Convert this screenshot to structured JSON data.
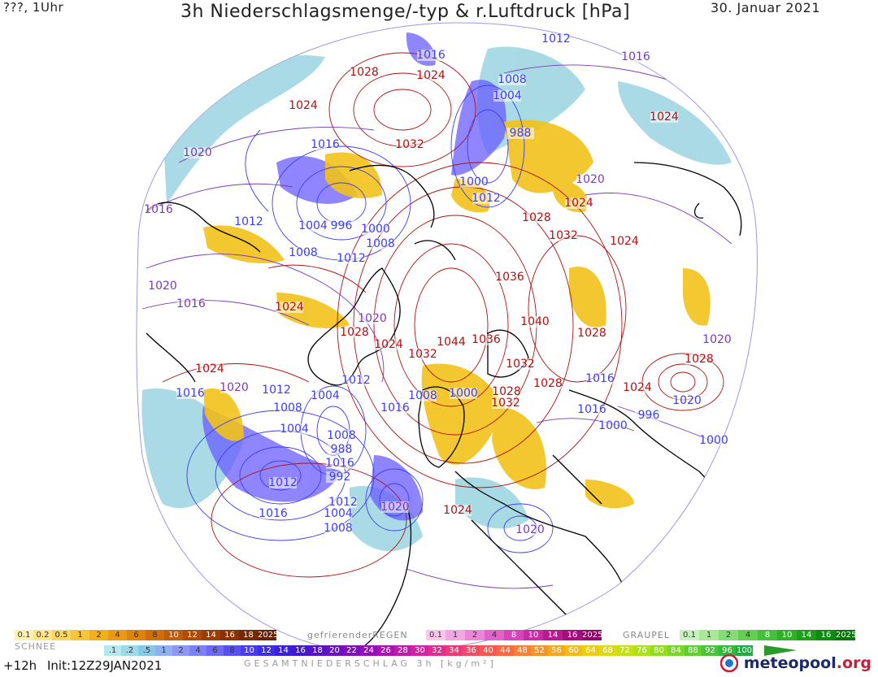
{
  "header": {
    "left": "???, 1Uhr",
    "title": "3h Niederschlagsmenge/-typ & r.Luftdruck [hPa]",
    "date": "30. Januar 2021"
  },
  "colors": {
    "high_isobar": "#b01010",
    "low_isobar": "#3d3df0",
    "mid_isobar": "#7a3ab8",
    "coast": "#000000",
    "snow": "#f2c21a",
    "rain_light": "#9ad4e0",
    "rain_heavy": "#6a5cff"
  },
  "pressure_labels": [
    {
      "t": "1012",
      "c": "low"
    },
    {
      "t": "1016",
      "c": "low"
    },
    {
      "t": "1008",
      "c": "low"
    },
    {
      "t": "1004",
      "c": "low"
    },
    {
      "t": "1016",
      "c": "mid"
    },
    {
      "t": "1028",
      "c": "high"
    },
    {
      "t": "1024",
      "c": "high"
    },
    {
      "t": "1024",
      "c": "high"
    },
    {
      "t": "988",
      "c": "low"
    },
    {
      "t": "1024",
      "c": "high"
    },
    {
      "t": "1020",
      "c": "mid"
    },
    {
      "t": "1016",
      "c": "low"
    },
    {
      "t": "1032",
      "c": "high"
    },
    {
      "t": "1000",
      "c": "low"
    },
    {
      "t": "1012",
      "c": "low"
    },
    {
      "t": "1020",
      "c": "mid"
    },
    {
      "t": "1016",
      "c": "mid"
    },
    {
      "t": "1012",
      "c": "low"
    },
    {
      "t": "1004",
      "c": "low"
    },
    {
      "t": "996",
      "c": "low"
    },
    {
      "t": "1000",
      "c": "low"
    },
    {
      "t": "1008",
      "c": "low"
    },
    {
      "t": "1028",
      "c": "high"
    },
    {
      "t": "1024",
      "c": "high"
    },
    {
      "t": "1032",
      "c": "high"
    },
    {
      "t": "1024",
      "c": "high"
    },
    {
      "t": "1008",
      "c": "low"
    },
    {
      "t": "1012",
      "c": "low"
    },
    {
      "t": "1036",
      "c": "high"
    },
    {
      "t": "1020",
      "c": "mid"
    },
    {
      "t": "1016",
      "c": "mid"
    },
    {
      "t": "1024",
      "c": "high"
    },
    {
      "t": "1020",
      "c": "mid"
    },
    {
      "t": "1040",
      "c": "high"
    },
    {
      "t": "1028",
      "c": "high"
    },
    {
      "t": "1028",
      "c": "high"
    },
    {
      "t": "1024",
      "c": "high"
    },
    {
      "t": "1032",
      "c": "high"
    },
    {
      "t": "1044",
      "c": "high"
    },
    {
      "t": "1036",
      "c": "high"
    },
    {
      "t": "1020",
      "c": "mid"
    },
    {
      "t": "1028",
      "c": "high"
    },
    {
      "t": "1032",
      "c": "high"
    },
    {
      "t": "1012",
      "c": "low"
    },
    {
      "t": "1028",
      "c": "high"
    },
    {
      "t": "1024",
      "c": "high"
    },
    {
      "t": "1020",
      "c": "mid"
    },
    {
      "t": "1016",
      "c": "low"
    },
    {
      "t": "1004",
      "c": "low"
    },
    {
      "t": "1008",
      "c": "low"
    },
    {
      "t": "1000",
      "c": "low"
    },
    {
      "t": "1028",
      "c": "high"
    },
    {
      "t": "1032",
      "c": "high"
    },
    {
      "t": "1024",
      "c": "high"
    },
    {
      "t": "1016",
      "c": "low"
    },
    {
      "t": "1020",
      "c": "low"
    },
    {
      "t": "1012",
      "c": "low"
    },
    {
      "t": "1016",
      "c": "low"
    },
    {
      "t": "1016",
      "c": "low"
    },
    {
      "t": "1008",
      "c": "low"
    },
    {
      "t": "1000",
      "c": "low"
    },
    {
      "t": "996",
      "c": "low"
    },
    {
      "t": "1000",
      "c": "low"
    },
    {
      "t": "1004",
      "c": "low"
    },
    {
      "t": "1008",
      "c": "low"
    },
    {
      "t": "988",
      "c": "low"
    },
    {
      "t": "1016",
      "c": "low"
    },
    {
      "t": "992",
      "c": "low"
    },
    {
      "t": "1012",
      "c": "low"
    },
    {
      "t": "1012",
      "c": "low"
    },
    {
      "t": "1020",
      "c": "mid"
    },
    {
      "t": "1024",
      "c": "high"
    },
    {
      "t": "1016",
      "c": "low"
    },
    {
      "t": "1004",
      "c": "low"
    },
    {
      "t": "1008",
      "c": "low"
    },
    {
      "t": "1020",
      "c": "mid"
    }
  ],
  "legend": {
    "snow_title": "SCHNEE",
    "snow": [
      {
        "l": "0.1",
        "c": "#fdf0b0"
      },
      {
        "l": "0.2",
        "c": "#fbe48a"
      },
      {
        "l": "0.5",
        "c": "#f8d565"
      },
      {
        "l": "1",
        "c": "#f5c53a"
      },
      {
        "l": "2",
        "c": "#f0b020"
      },
      {
        "l": "4",
        "c": "#e89a15"
      },
      {
        "l": "6",
        "c": "#dd8410"
      },
      {
        "l": "8",
        "c": "#cf6f0c"
      },
      {
        "l": "10",
        "c": "#bf5c0a"
      },
      {
        "l": "12",
        "c": "#ad4c08"
      },
      {
        "l": "14",
        "c": "#9a3e07"
      },
      {
        "l": "16",
        "c": "#883306"
      },
      {
        "l": "18",
        "c": "#762905"
      },
      {
        "l": "2025+",
        "c": "#642004"
      }
    ],
    "freezing_title": "gefrierender",
    "freezing_suffix": "REGEN",
    "freezing": [
      {
        "l": "0.1",
        "c": "#f6c8ec"
      },
      {
        "l": "1",
        "c": "#f0a8e2"
      },
      {
        "l": "2",
        "c": "#ea86d6"
      },
      {
        "l": "4",
        "c": "#e064c8"
      },
      {
        "l": "8",
        "c": "#d646b8"
      },
      {
        "l": "10",
        "c": "#c82ea4"
      },
      {
        "l": "14",
        "c": "#b81a90"
      },
      {
        "l": "16",
        "c": "#a40e7a"
      },
      {
        "l": "2025+",
        "c": "#8c0664"
      }
    ],
    "graupel_title": "GRAUPEL",
    "graupel": [
      {
        "l": "0.1",
        "c": "#c8f0c0"
      },
      {
        "l": "1",
        "c": "#a8e898"
      },
      {
        "l": "2",
        "c": "#86dc74"
      },
      {
        "l": "4",
        "c": "#64ce54"
      },
      {
        "l": "8",
        "c": "#46c03a"
      },
      {
        "l": "10",
        "c": "#30b028"
      },
      {
        "l": "14",
        "c": "#1e9e1c"
      },
      {
        "l": "16",
        "c": "#128a12"
      },
      {
        "l": "2025+",
        "c": "#0a740a"
      }
    ],
    "total_title": "GESAMTNIEDERSCHLAG 3h [kg/m²]",
    "total": [
      {
        "l": ".1",
        "c": "#b6e6ee"
      },
      {
        "l": ".2",
        "c": "#9adbe6"
      },
      {
        "l": ".5",
        "c": "#86c8e6"
      },
      {
        "l": "1",
        "c": "#8eb0f0"
      },
      {
        "l": "2",
        "c": "#8c98f4"
      },
      {
        "l": "4",
        "c": "#7f7ff6"
      },
      {
        "l": "6",
        "c": "#6e68f4"
      },
      {
        "l": "8",
        "c": "#5a50f0"
      },
      {
        "l": "10",
        "c": "#4a3cea"
      },
      {
        "l": "12",
        "c": "#3e2ee2"
      },
      {
        "l": "14",
        "c": "#3a20d6"
      },
      {
        "l": "16",
        "c": "#4418cc"
      },
      {
        "l": "18",
        "c": "#5614c4"
      },
      {
        "l": "20",
        "c": "#6a12be"
      },
      {
        "l": "22",
        "c": "#7e10b8"
      },
      {
        "l": "24",
        "c": "#9410b4"
      },
      {
        "l": "26",
        "c": "#aa14b0"
      },
      {
        "l": "28",
        "c": "#bf1caa"
      },
      {
        "l": "30",
        "c": "#d224a0"
      },
      {
        "l": "32",
        "c": "#e02e90"
      },
      {
        "l": "34",
        "c": "#ea3a7c"
      },
      {
        "l": "36",
        "c": "#f04a66"
      },
      {
        "l": "40",
        "c": "#f45a52"
      },
      {
        "l": "44",
        "c": "#f66c42"
      },
      {
        "l": "48",
        "c": "#f78034"
      },
      {
        "l": "52",
        "c": "#f69428"
      },
      {
        "l": "56",
        "c": "#f4a81e"
      },
      {
        "l": "60",
        "c": "#f0bc16"
      },
      {
        "l": "64",
        "c": "#eace12"
      },
      {
        "l": "68",
        "c": "#dcda12"
      },
      {
        "l": "72",
        "c": "#c6e016"
      },
      {
        "l": "76",
        "c": "#aee01c"
      },
      {
        "l": "80",
        "c": "#94dc22"
      },
      {
        "l": "84",
        "c": "#7ad62a"
      },
      {
        "l": "88",
        "c": "#60ce32"
      },
      {
        "l": "92",
        "c": "#48c43a"
      },
      {
        "l": "96",
        "c": "#34b840"
      },
      {
        "l": "100",
        "c": "#22aa44"
      }
    ]
  },
  "footer": {
    "forecast": "+12h",
    "init": "Init:12Z29JAN2021"
  },
  "logo": {
    "name": "meteopool",
    "tld": ".org"
  }
}
